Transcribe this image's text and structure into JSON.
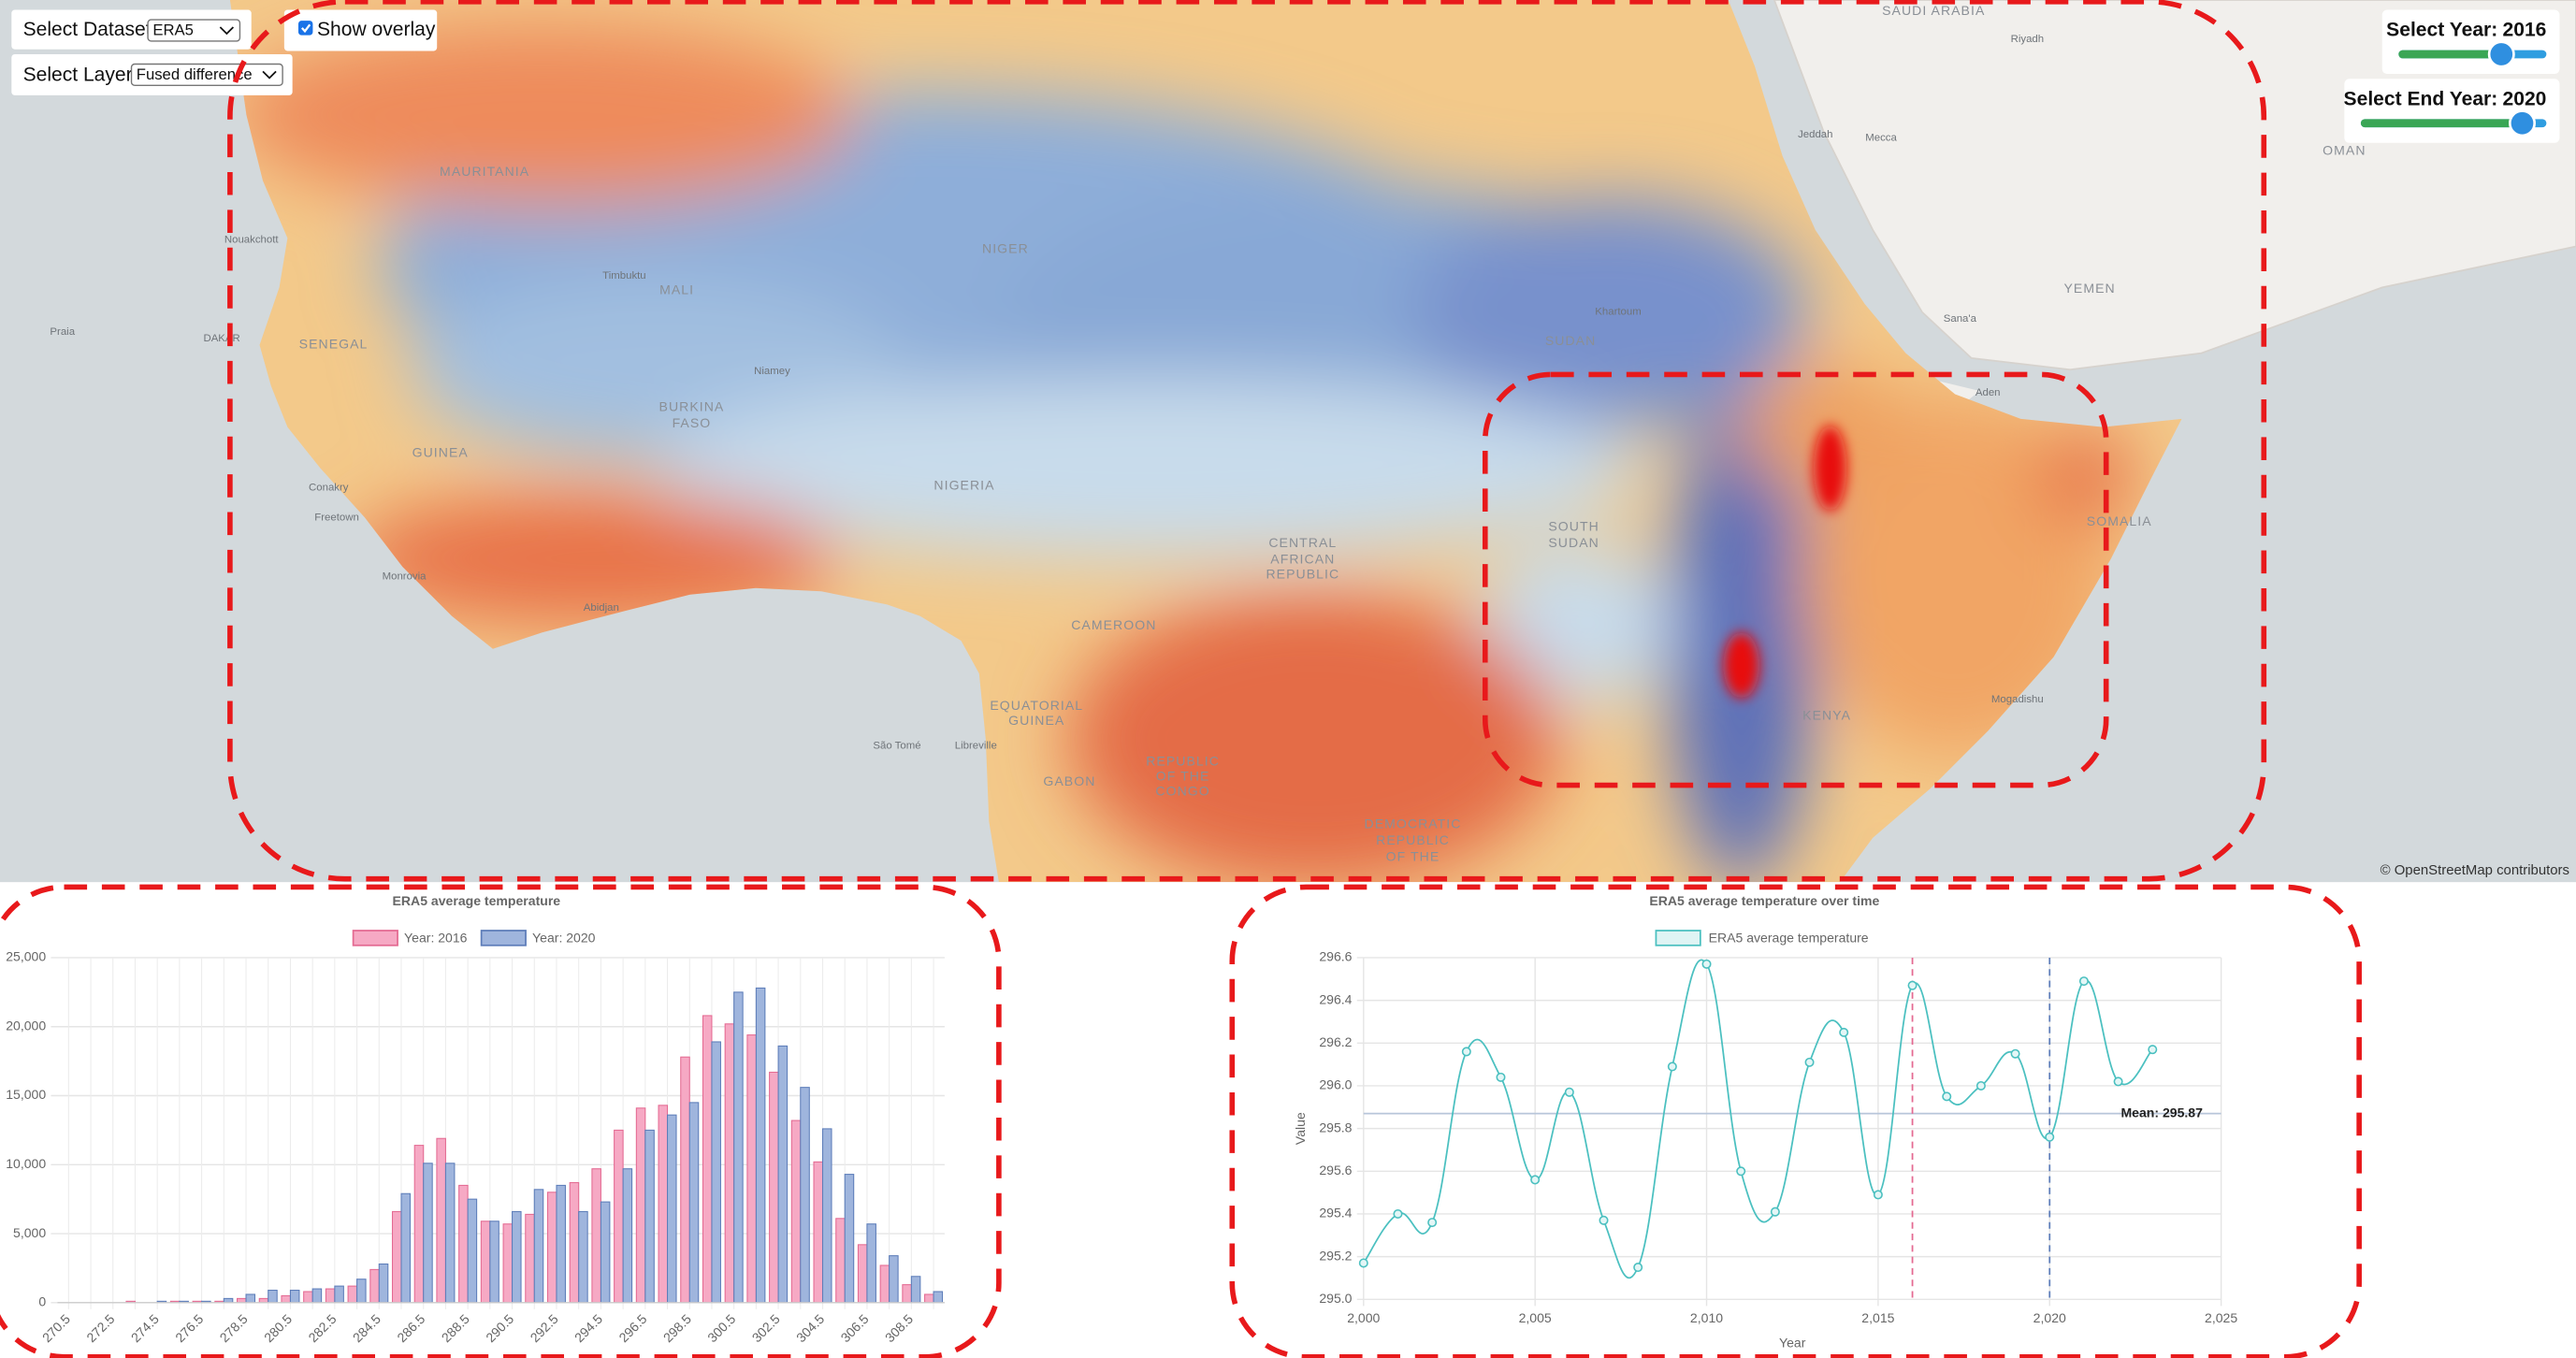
{
  "controls": {
    "dataset": {
      "label": "Select Dataset",
      "value": "ERA5"
    },
    "layer": {
      "label": "Select Layer",
      "value": "Fused difference"
    },
    "overlay": {
      "label": "Show overlay",
      "checked": true
    },
    "start_year": {
      "label": "Select Year:",
      "value": 2016
    },
    "end_year": {
      "label": "Select End Year:",
      "value": 2020
    }
  },
  "map": {
    "labels": [
      "MAURITANIA",
      "MALI",
      "NIGER",
      "SUDAN",
      "YEMEN",
      "OMAN",
      "SAUDI ARABIA",
      "SENEGAL",
      "GUINEA",
      "BURKINA",
      "FASO",
      "NIGERIA",
      "CAMEROON",
      "SOUTH",
      "SUDAN",
      "KENYA",
      "SOMALIA",
      "GABON",
      "REPUBLIC",
      "OF THE",
      "CONGO",
      "CENTRAL",
      "AFRICAN",
      "REPUBLIC",
      "EQUATORIAL",
      "GUINEA",
      "DEMOCRATIC",
      "REPUBLIC",
      "OF THE",
      "DAKAR",
      "Nouakchott",
      "Praia",
      "Riyadh",
      "Mecca",
      "Jeddah",
      "Aden",
      "Sana'a",
      "Mogadishu",
      "Libreville",
      "São Tomé",
      "Abidjan",
      "Timbuktu",
      "Niamey",
      "Khartoum",
      "Conakry",
      "Freetown",
      "Monrovia"
    ],
    "attribution": "© OpenStreetMap contributors"
  },
  "chart_data": [
    {
      "type": "bar",
      "title": "ERA5 average temperature",
      "categories": [
        "270.5",
        null,
        "272.5",
        null,
        "274.5",
        null,
        "276.5",
        null,
        "278.5",
        null,
        "280.5",
        null,
        "282.5",
        null,
        "284.5",
        null,
        "286.5",
        null,
        "288.5",
        null,
        "290.5",
        null,
        "292.5",
        null,
        "294.5",
        null,
        "296.5",
        null,
        "298.5",
        null,
        "300.5",
        null,
        "302.5",
        null,
        "304.5",
        null,
        "306.5",
        null,
        "308.5",
        null
      ],
      "series": [
        {
          "name": "Year: 2016",
          "color": "#f6a9c4",
          "border": "#e46a92",
          "values": [
            0,
            0,
            0,
            100,
            0,
            100,
            100,
            100,
            300,
            300,
            500,
            800,
            1000,
            1200,
            2400,
            6600,
            11400,
            11900,
            8500,
            5900,
            5700,
            6400,
            8000,
            8700,
            9700,
            12500,
            14100,
            14300,
            17800,
            20800,
            20200,
            19400,
            16700,
            13200,
            10200,
            6100,
            4200,
            2700,
            1300,
            600
          ]
        },
        {
          "name": "Year: 2020",
          "color": "#9fb5dd",
          "border": "#5d7db9",
          "values": [
            0,
            0,
            0,
            0,
            100,
            100,
            100,
            300,
            600,
            900,
            900,
            1000,
            1200,
            1700,
            2800,
            7900,
            10100,
            10100,
            7500,
            5900,
            6600,
            8200,
            8500,
            6600,
            7300,
            9700,
            12500,
            13600,
            14500,
            18900,
            22500,
            22800,
            18600,
            15600,
            12600,
            9300,
            5700,
            3400,
            1900,
            800
          ]
        }
      ],
      "ylim": [
        0,
        25000
      ],
      "yticks": [
        0,
        {
          "value": 5000,
          "label": "5,000"
        },
        {
          "value": 10000,
          "label": "10,000"
        },
        {
          "value": 15000,
          "label": "15,000"
        },
        {
          "value": 20000,
          "label": "20,000"
        },
        {
          "value": 25000,
          "label": "25,000"
        }
      ],
      "grid": true
    },
    {
      "type": "line",
      "title": "ERA5 average temperature over time",
      "x": [
        2000,
        2001,
        2002,
        2003,
        2004,
        2005,
        2006,
        2007,
        2008,
        2009,
        2010,
        2011,
        2012,
        2013,
        2014,
        2015,
        2016,
        2017,
        2018,
        2019,
        2020,
        2021,
        2022,
        2023
      ],
      "series": [
        {
          "name": "ERA5 average temperature",
          "color": "#4bc0c0",
          "values": [
            295.17,
            295.4,
            295.36,
            296.16,
            296.04,
            295.56,
            295.97,
            295.37,
            295.15,
            296.09,
            296.57,
            295.6,
            295.41,
            296.11,
            296.25,
            295.49,
            296.47,
            295.95,
            296.0,
            296.15,
            295.76,
            296.49,
            296.02,
            296.17
          ]
        }
      ],
      "xlim": [
        2000,
        2025
      ],
      "xticks": [
        {
          "value": 2000,
          "label": "2,000"
        },
        {
          "value": 2005,
          "label": "2,005"
        },
        {
          "value": 2010,
          "label": "2,010"
        },
        {
          "value": 2015,
          "label": "2,015"
        },
        {
          "value": 2020,
          "label": "2,020"
        },
        {
          "value": 2025,
          "label": "2,025"
        }
      ],
      "ylim": [
        295,
        296.6
      ],
      "yticks": [
        {
          "value": 295,
          "label": "295.0"
        },
        295.2,
        295.4,
        295.6,
        295.8,
        {
          "value": 296,
          "label": "296.0"
        },
        296.2,
        296.4,
        296.6
      ],
      "xlabel": "Year",
      "ylabel": "Value",
      "mean": {
        "value": 295.87,
        "label": "Mean: 295.87"
      },
      "grid": true
    }
  ]
}
